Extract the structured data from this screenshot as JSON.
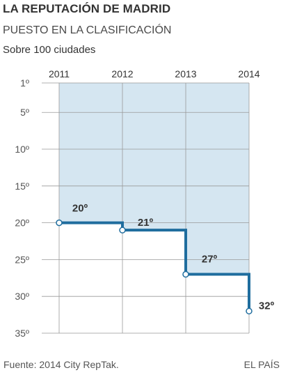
{
  "header": {
    "title": "LA REPUTACIÓN DE MADRID",
    "subtitle": "PUESTO EN LA CLASIFICACIÓN",
    "note": "Sobre 100 ciudades"
  },
  "footer": {
    "source": "Fuente: 2014 City RepTak.",
    "credit": "EL PAÍS"
  },
  "colors": {
    "line": "#1f6d9e",
    "shade": "#d5e6f1",
    "grid": "#999999"
  },
  "chart_data": {
    "type": "line",
    "step": true,
    "title": "LA REPUTACIÓN DE MADRID",
    "subtitle": "PUESTO EN LA CLASIFICACIÓN",
    "xlabel": "",
    "ylabel": "",
    "x": [
      2011,
      2012,
      2013,
      2014
    ],
    "x_tick_labels": [
      "2011",
      "2012",
      "2013",
      "2014"
    ],
    "values": [
      20,
      21,
      27,
      32
    ],
    "data_labels": [
      "20º",
      "21º",
      "27º",
      "32º"
    ],
    "y_ticks": [
      1,
      5,
      10,
      15,
      20,
      25,
      30,
      35
    ],
    "y_tick_labels": [
      "1º",
      "5º",
      "10º",
      "15º",
      "20º",
      "25º",
      "30º",
      "35º"
    ],
    "ylim": [
      1,
      35
    ],
    "y_inverted": true,
    "grid": true
  }
}
